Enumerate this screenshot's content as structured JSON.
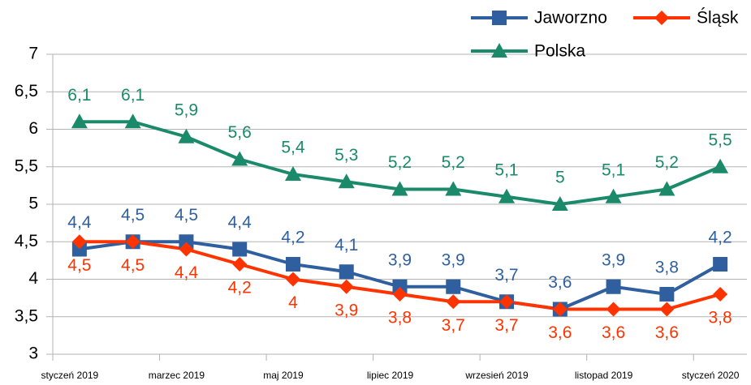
{
  "chart_data": {
    "type": "line",
    "categories": [
      "styczeń 2019",
      null,
      "marzec 2019",
      null,
      "maj 2019",
      null,
      "lipiec 2019",
      null,
      "wrzesień 2019",
      null,
      "listopad 2019",
      null,
      "styczeń 2020"
    ],
    "series": [
      {
        "name": "Jaworzno",
        "color": "#2f5f9e",
        "marker": "square",
        "label_position": "above",
        "values": [
          4.4,
          4.5,
          4.5,
          4.4,
          4.2,
          4.1,
          3.9,
          3.9,
          3.7,
          3.6,
          3.9,
          3.8,
          4.2
        ],
        "value_labels": [
          "4,4",
          "4,5",
          "4,5",
          "4,4",
          "4,2",
          "4,1",
          "3,9",
          "3,9",
          "3,7",
          "3,6",
          "3,9",
          "3,8",
          "4,2"
        ]
      },
      {
        "name": "Śląsk",
        "color": "#ff3300",
        "marker": "diamond",
        "label_position": "below",
        "values": [
          4.5,
          4.5,
          4.4,
          4.2,
          4,
          3.9,
          3.8,
          3.7,
          3.7,
          3.6,
          3.6,
          3.6,
          3.8
        ],
        "value_labels": [
          "4,5",
          "4,5",
          "4,4",
          "4,2",
          "4",
          "3,9",
          "3,8",
          "3,7",
          "3,7",
          "3,6",
          "3,6",
          "3,6",
          "3,8"
        ]
      },
      {
        "name": "Polska",
        "color": "#1b8a6b",
        "marker": "triangle",
        "label_position": "above",
        "values": [
          6.1,
          6.1,
          5.9,
          5.6,
          5.4,
          5.3,
          5.2,
          5.2,
          5.1,
          5,
          5.1,
          5.2,
          5.5
        ],
        "value_labels": [
          "6,1",
          "6,1",
          "5,9",
          "5,6",
          "5,4",
          "5,3",
          "5,2",
          "5,2",
          "5,1",
          "5",
          "5,1",
          "5,2",
          "5,5"
        ]
      }
    ],
    "ylim": [
      3,
      7
    ],
    "yticks": [
      3,
      {
        "value": 3.5,
        "label": "3,5"
      },
      4,
      {
        "value": 4.5,
        "label": "4,5"
      },
      5,
      {
        "value": 5.5,
        "label": "5,5"
      },
      6,
      {
        "value": 6.5,
        "label": "6,5"
      },
      7
    ],
    "grid": true,
    "legend": "top-right"
  }
}
